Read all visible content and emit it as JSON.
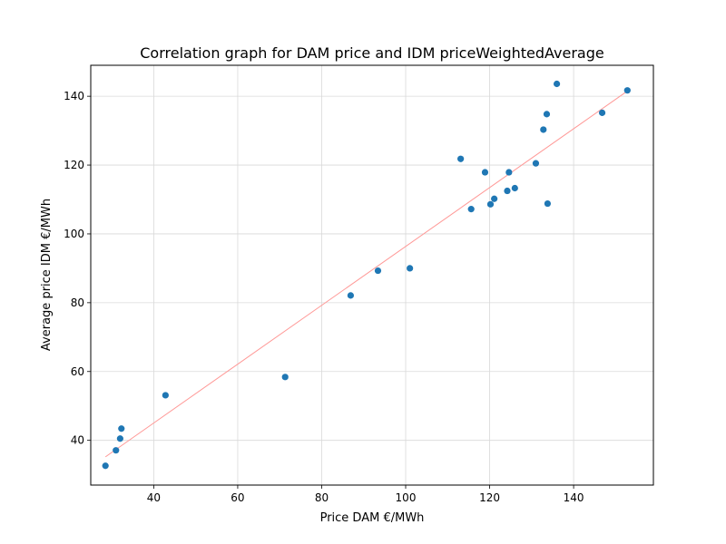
{
  "chart_data": {
    "type": "scatter",
    "title": "Correlation graph for DAM price and IDM priceWeightedAverage",
    "xlabel": "Price DAM €/MWh",
    "ylabel": "Average price IDM €/MWh",
    "xlim": [
      25,
      159
    ],
    "ylim": [
      27,
      149
    ],
    "xticks": [
      40,
      60,
      80,
      100,
      120,
      140
    ],
    "yticks": [
      40,
      60,
      80,
      100,
      120,
      140
    ],
    "grid": true,
    "points": [
      {
        "x": 28.5,
        "y": 32.6
      },
      {
        "x": 31.0,
        "y": 37.1
      },
      {
        "x": 32.0,
        "y": 40.5
      },
      {
        "x": 32.3,
        "y": 43.4
      },
      {
        "x": 42.8,
        "y": 53.1
      },
      {
        "x": 71.3,
        "y": 58.4
      },
      {
        "x": 86.9,
        "y": 82.1
      },
      {
        "x": 93.4,
        "y": 89.3
      },
      {
        "x": 101.0,
        "y": 90.0
      },
      {
        "x": 113.1,
        "y": 121.8
      },
      {
        "x": 115.6,
        "y": 107.2
      },
      {
        "x": 118.9,
        "y": 117.9
      },
      {
        "x": 120.2,
        "y": 108.6
      },
      {
        "x": 121.1,
        "y": 110.2
      },
      {
        "x": 124.2,
        "y": 112.5
      },
      {
        "x": 124.6,
        "y": 117.9
      },
      {
        "x": 126.0,
        "y": 113.3
      },
      {
        "x": 131.0,
        "y": 120.5
      },
      {
        "x": 132.8,
        "y": 130.3
      },
      {
        "x": 133.6,
        "y": 134.8
      },
      {
        "x": 133.8,
        "y": 108.8
      },
      {
        "x": 136.0,
        "y": 143.6
      },
      {
        "x": 146.8,
        "y": 135.2
      },
      {
        "x": 152.8,
        "y": 141.7
      }
    ],
    "trendline": {
      "x": [
        28.5,
        152.8
      ],
      "y": [
        35.2,
        141.5
      ]
    },
    "colors": {
      "points": "#1f77b4",
      "trendline": "#ff9896",
      "grid": "#d9d9d9"
    }
  }
}
